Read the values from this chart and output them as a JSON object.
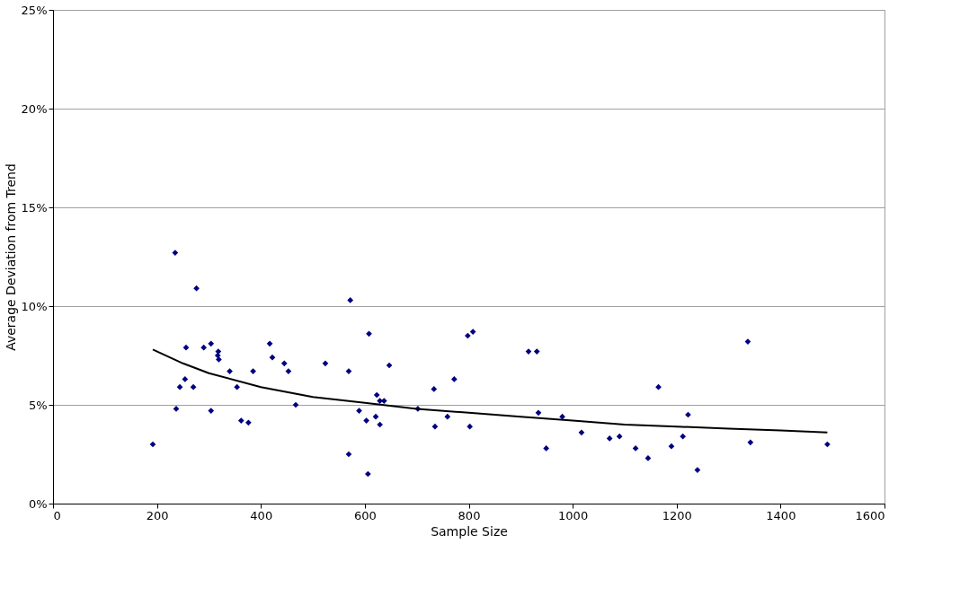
{
  "chart_data": {
    "type": "scatter",
    "xlabel": "Sample Size",
    "ylabel": "Average Deviation from Trend",
    "xlim": [
      0,
      1600
    ],
    "xticks": [
      0,
      200,
      400,
      600,
      800,
      {
        "value": 1000,
        "label": "1000"
      },
      {
        "value": 1200,
        "label": "1200"
      },
      {
        "value": 1400,
        "label": "1400"
      },
      {
        "value": 1600,
        "label": "1600"
      }
    ],
    "ylim": [
      0,
      25
    ],
    "yticks": [
      {
        "value": 0,
        "label": "0%"
      },
      {
        "value": 5,
        "label": "5%"
      },
      {
        "value": 10,
        "label": "10%"
      },
      {
        "value": 15,
        "label": "15%"
      },
      {
        "value": 20,
        "label": "20%"
      },
      {
        "value": 25,
        "label": "25%"
      }
    ],
    "grid": "y",
    "legend": false,
    "series": [
      {
        "type": "scatter",
        "marker": "diamond",
        "color": "#000080",
        "x": [
          235,
          276,
          256,
          290,
          304,
          318,
          317,
          319,
          340,
          385,
          417,
          422,
          445,
          453,
          254,
          244,
          270,
          354,
          467,
          237,
          304,
          362,
          376,
          192,
          572,
          608,
          524,
          569,
          647,
          623,
          629,
          637,
          589,
          603,
          621,
          629,
          569,
          606,
          702,
          733,
          772,
          735,
          759,
          802,
          798,
          808,
          915,
          931,
          934,
          949,
          980,
          1017,
          1071,
          1090,
          1121,
          1145,
          1165,
          1190,
          1212,
          1222,
          1240,
          1337,
          1342,
          1490
        ],
        "values": [
          12.7,
          10.9,
          7.9,
          7.9,
          8.1,
          7.7,
          7.5,
          7.3,
          6.7,
          6.7,
          8.1,
          7.4,
          7.1,
          6.7,
          6.3,
          5.9,
          5.9,
          5.9,
          5.0,
          4.8,
          4.7,
          4.2,
          4.1,
          3.0,
          10.3,
          8.6,
          7.1,
          6.7,
          7.0,
          5.5,
          5.2,
          5.2,
          4.7,
          4.2,
          4.4,
          4.0,
          2.5,
          1.5,
          4.8,
          5.8,
          6.3,
          3.9,
          4.4,
          3.9,
          8.5,
          8.7,
          7.7,
          7.7,
          4.6,
          2.8,
          4.4,
          3.6,
          3.3,
          3.4,
          2.8,
          2.3,
          5.9,
          2.9,
          3.4,
          4.5,
          1.7,
          8.2,
          3.1,
          3.0
        ]
      },
      {
        "type": "line",
        "marker": "none",
        "line_style": "solid",
        "color": "#000000",
        "x": [
          192,
          250,
          300,
          400,
          500,
          600,
          700,
          800,
          900,
          1000,
          1100,
          1200,
          1300,
          1400,
          1490
        ],
        "values": [
          7.8,
          7.1,
          6.6,
          5.9,
          5.4,
          5.1,
          4.8,
          4.6,
          4.4,
          4.2,
          4.0,
          3.9,
          3.8,
          3.7,
          3.6
        ]
      }
    ]
  }
}
